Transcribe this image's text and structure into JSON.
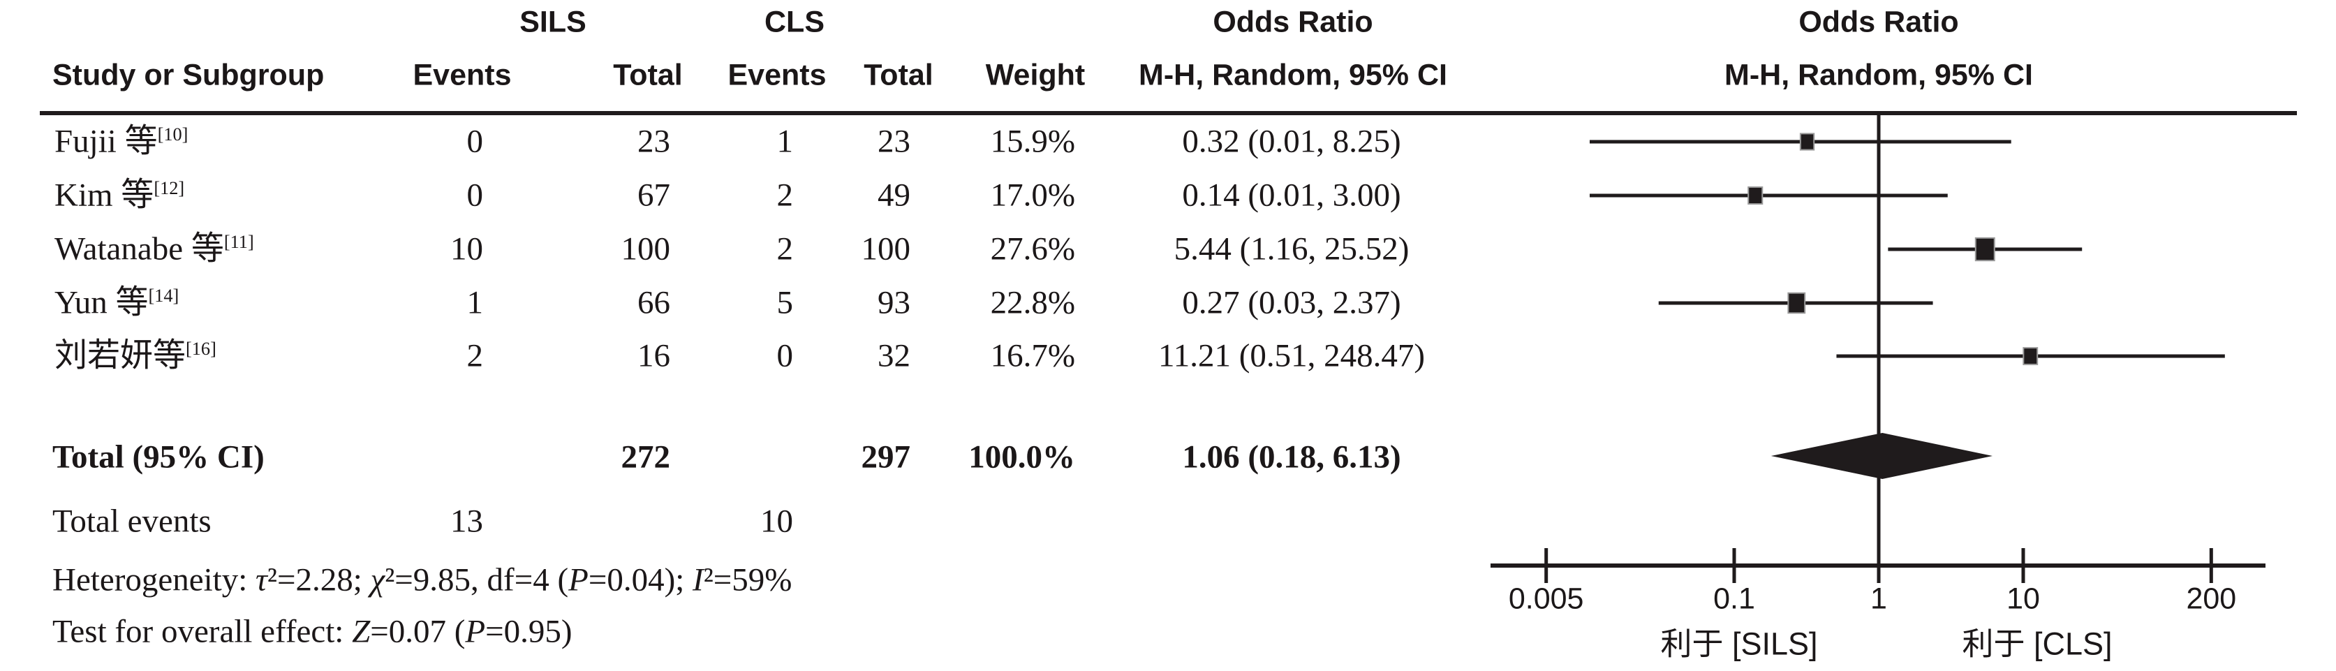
{
  "figure": {
    "header": {
      "group1": "SILS",
      "group2": "CLS",
      "study_col": "Study or Subgroup",
      "events_col": "Events",
      "total_col": "Total",
      "weight_col": "Weight",
      "or_title": "Odds Ratio",
      "or_subtitle": "M-H, Random, 95% CI"
    },
    "total_row": {
      "label": "Total (95% CI)",
      "sils_total": "272",
      "cls_total": "297",
      "weight": "100.0%",
      "or_text": "1.06 (0.18, 6.13)"
    },
    "total_events": {
      "label": "Total events",
      "sils": "13",
      "cls": "10"
    },
    "stats": {
      "heterogeneity": "Heterogeneity: τ²=2.28; χ²=9.85, df=4 (P=0.04); I²=59%",
      "overall_effect": "Test for overall effect: Z=0.07 (P=0.95)"
    },
    "axis": {
      "favours_left": "利于 [SILS]",
      "favours_right": "利于 [CLS]"
    }
  },
  "chart_data": {
    "type": "forest",
    "x_scale": "log",
    "effect_measure": "Odds Ratio, M-H, Random, 95% CI",
    "null_value": 1,
    "axis_range_ticks": [
      0.005,
      0.1,
      1,
      10,
      200
    ],
    "ticks": [
      {
        "v": 0.005,
        "label": "0.005"
      },
      {
        "v": 0.1,
        "label": "0.1"
      },
      {
        "v": 1,
        "label": "1"
      },
      {
        "v": 10,
        "label": "10"
      },
      {
        "v": 200,
        "label": "200"
      }
    ],
    "studies": [
      {
        "name": "Fujii 等",
        "ref": "[10]",
        "sils_events": "0",
        "sils_total": "23",
        "cls_events": "1",
        "cls_total": "23",
        "weight": "15.9%",
        "weight_pct": 15.9,
        "or_text": "0.32 (0.01, 8.25)",
        "or": 0.32,
        "ci_low": 0.01,
        "ci_high": 8.25
      },
      {
        "name": "Kim 等",
        "ref": "[12]",
        "sils_events": "0",
        "sils_total": "67",
        "cls_events": "2",
        "cls_total": "49",
        "weight": "17.0%",
        "weight_pct": 17.0,
        "or_text": "0.14 (0.01, 3.00)",
        "or": 0.14,
        "ci_low": 0.01,
        "ci_high": 3.0
      },
      {
        "name": "Watanabe 等",
        "ref": "[11]",
        "sils_events": "10",
        "sils_total": "100",
        "cls_events": "2",
        "cls_total": "100",
        "weight": "27.6%",
        "weight_pct": 27.6,
        "or_text": "5.44 (1.16, 25.52)",
        "or": 5.44,
        "ci_low": 1.16,
        "ci_high": 25.52
      },
      {
        "name": "Yun 等",
        "ref": "[14]",
        "sils_events": "1",
        "sils_total": "66",
        "cls_events": "5",
        "cls_total": "93",
        "weight": "22.8%",
        "weight_pct": 22.8,
        "or_text": "0.27 (0.03, 2.37)",
        "or": 0.27,
        "ci_low": 0.03,
        "ci_high": 2.37
      },
      {
        "name": "刘若妍等",
        "ref": "[16]",
        "sils_events": "2",
        "sils_total": "16",
        "cls_events": "0",
        "cls_total": "32",
        "weight": "16.7%",
        "weight_pct": 16.7,
        "or_text": "11.21 (0.51, 248.47)",
        "or": 11.21,
        "ci_low": 0.51,
        "ci_high": 248.47
      }
    ],
    "summary": {
      "or": 1.06,
      "ci_low": 0.18,
      "ci_high": 6.13
    }
  }
}
